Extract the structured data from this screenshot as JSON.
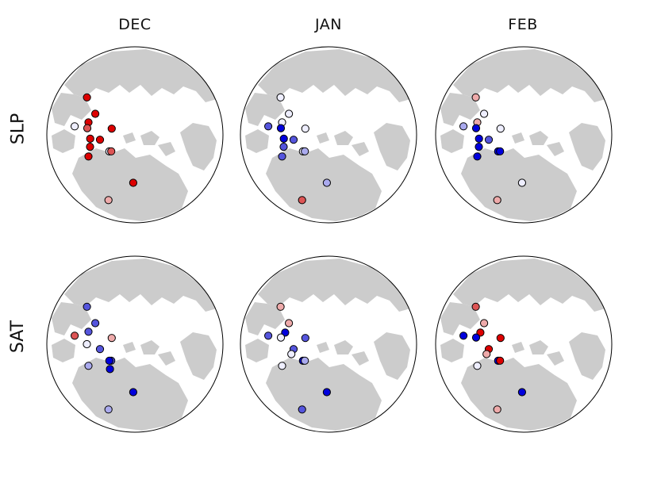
{
  "columns": [
    "DEC",
    "JAN",
    "FEB"
  ],
  "rows": [
    "SLP",
    "SAT"
  ],
  "colors": {
    "land": "#cccccc",
    "ocean": "#ffffff",
    "outline": "#000000",
    "strong_positive": "#dd0000",
    "moderate_positive": "#dd5555",
    "weak_positive": "#eeaaaa",
    "neutral": "#eeeeff",
    "weak_negative": "#aaaaee",
    "moderate_negative": "#5555dd",
    "strong_negative": "#0000dd"
  },
  "panels": [
    {
      "row": "SLP",
      "column": "DEC",
      "stations": [
        {
          "lon": 213,
          "lat": 71,
          "level": 0
        },
        {
          "lon": 188,
          "lat": 68,
          "level": 3
        },
        {
          "lon": 165,
          "lat": 60,
          "level": 3
        },
        {
          "lon": 142,
          "lat": 52,
          "level": 3
        },
        {
          "lon": 152,
          "lat": 62,
          "level": 3
        },
        {
          "lon": 165,
          "lat": 75,
          "level": 3
        },
        {
          "lon": 268,
          "lat": 60,
          "level": 3
        },
        {
          "lon": 215,
          "lat": 72,
          "level": 2
        },
        {
          "lon": 205,
          "lat": 58,
          "level": 3
        },
        {
          "lon": 195,
          "lat": 61,
          "level": 3
        },
        {
          "lon": 185,
          "lat": 62,
          "level": 3
        },
        {
          "lon": 172,
          "lat": 60,
          "level": 2
        },
        {
          "lon": 248,
          "lat": 46,
          "level": 1
        },
        {
          "lon": 172,
          "lat": 52,
          "level": 0
        }
      ]
    },
    {
      "row": "SLP",
      "column": "JAN",
      "stations": [
        {
          "lon": 213,
          "lat": 71,
          "level": 0
        },
        {
          "lon": 188,
          "lat": 68,
          "level": -2
        },
        {
          "lon": 165,
          "lat": 60,
          "level": 0
        },
        {
          "lon": 142,
          "lat": 52,
          "level": 0
        },
        {
          "lon": 152,
          "lat": 62,
          "level": 0
        },
        {
          "lon": 165,
          "lat": 75,
          "level": 0
        },
        {
          "lon": 268,
          "lat": 60,
          "level": -1
        },
        {
          "lon": 215,
          "lat": 72,
          "level": -1
        },
        {
          "lon": 205,
          "lat": 58,
          "level": -2
        },
        {
          "lon": 195,
          "lat": 61,
          "level": -2
        },
        {
          "lon": 185,
          "lat": 62,
          "level": -3
        },
        {
          "lon": 172,
          "lat": 60,
          "level": -3
        },
        {
          "lon": 248,
          "lat": 46,
          "level": 2
        },
        {
          "lon": 172,
          "lat": 52,
          "level": -2
        }
      ]
    },
    {
      "row": "SLP",
      "column": "FEB",
      "stations": [
        {
          "lon": 213,
          "lat": 71,
          "level": -3
        },
        {
          "lon": 188,
          "lat": 68,
          "level": -2
        },
        {
          "lon": 165,
          "lat": 60,
          "level": 1
        },
        {
          "lon": 142,
          "lat": 52,
          "level": 1
        },
        {
          "lon": 152,
          "lat": 62,
          "level": 0
        },
        {
          "lon": 165,
          "lat": 75,
          "level": 0
        },
        {
          "lon": 268,
          "lat": 60,
          "level": 0
        },
        {
          "lon": 215,
          "lat": 72,
          "level": -3
        },
        {
          "lon": 205,
          "lat": 58,
          "level": -3
        },
        {
          "lon": 195,
          "lat": 61,
          "level": -3
        },
        {
          "lon": 185,
          "lat": 62,
          "level": -3
        },
        {
          "lon": 172,
          "lat": 60,
          "level": -3
        },
        {
          "lon": 248,
          "lat": 46,
          "level": 1
        },
        {
          "lon": 172,
          "lat": 52,
          "level": -1
        }
      ]
    },
    {
      "row": "SAT",
      "column": "DEC",
      "stations": [
        {
          "lon": 268,
          "lat": 60,
          "level": -3
        },
        {
          "lon": 188,
          "lat": 68,
          "level": -2
        },
        {
          "lon": 165,
          "lat": 75,
          "level": 1
        },
        {
          "lon": 142,
          "lat": 52,
          "level": -2
        },
        {
          "lon": 152,
          "lat": 62,
          "level": -2
        },
        {
          "lon": 165,
          "lat": 60,
          "level": -2
        },
        {
          "lon": 215,
          "lat": 72,
          "level": -2
        },
        {
          "lon": 225,
          "lat": 68,
          "level": -3
        },
        {
          "lon": 213,
          "lat": 71,
          "level": -3
        },
        {
          "lon": 205,
          "lat": 58,
          "level": -1
        },
        {
          "lon": 180,
          "lat": 60,
          "level": 0
        },
        {
          "lon": 172,
          "lat": 52,
          "level": 2
        },
        {
          "lon": 248,
          "lat": 46,
          "level": -1
        }
      ]
    },
    {
      "row": "SAT",
      "column": "JAN",
      "stations": [
        {
          "lon": 268,
          "lat": 60,
          "level": -3
        },
        {
          "lon": 188,
          "lat": 68,
          "level": -2
        },
        {
          "lon": 165,
          "lat": 75,
          "level": -2
        },
        {
          "lon": 165,
          "lat": 62,
          "level": -3
        },
        {
          "lon": 142,
          "lat": 52,
          "level": 1
        },
        {
          "lon": 152,
          "lat": 62,
          "level": 1
        },
        {
          "lon": 213,
          "lat": 71,
          "level": -3
        },
        {
          "lon": 215,
          "lat": 72,
          "level": -1
        },
        {
          "lon": 195,
          "lat": 66,
          "level": 0
        },
        {
          "lon": 205,
          "lat": 58,
          "level": 0
        },
        {
          "lon": 172,
          "lat": 60,
          "level": 0
        },
        {
          "lon": 172,
          "lat": 52,
          "level": -2
        },
        {
          "lon": 248,
          "lat": 46,
          "level": -2
        }
      ]
    },
    {
      "row": "SAT",
      "column": "FEB",
      "stations": [
        {
          "lon": 268,
          "lat": 60,
          "level": -3
        },
        {
          "lon": 188,
          "lat": 68,
          "level": 3
        },
        {
          "lon": 165,
          "lat": 75,
          "level": 3
        },
        {
          "lon": 165,
          "lat": 62,
          "level": 3
        },
        {
          "lon": 142,
          "lat": 52,
          "level": 2
        },
        {
          "lon": 152,
          "lat": 62,
          "level": 1
        },
        {
          "lon": 213,
          "lat": 71,
          "level": -3
        },
        {
          "lon": 215,
          "lat": 72,
          "level": 3
        },
        {
          "lon": 195,
          "lat": 66,
          "level": 1
        },
        {
          "lon": 205,
          "lat": 58,
          "level": 0
        },
        {
          "lon": 172,
          "lat": 60,
          "level": -3
        },
        {
          "lon": 172,
          "lat": 52,
          "level": -3
        },
        {
          "lon": 248,
          "lat": 46,
          "level": 1
        }
      ]
    }
  ]
}
